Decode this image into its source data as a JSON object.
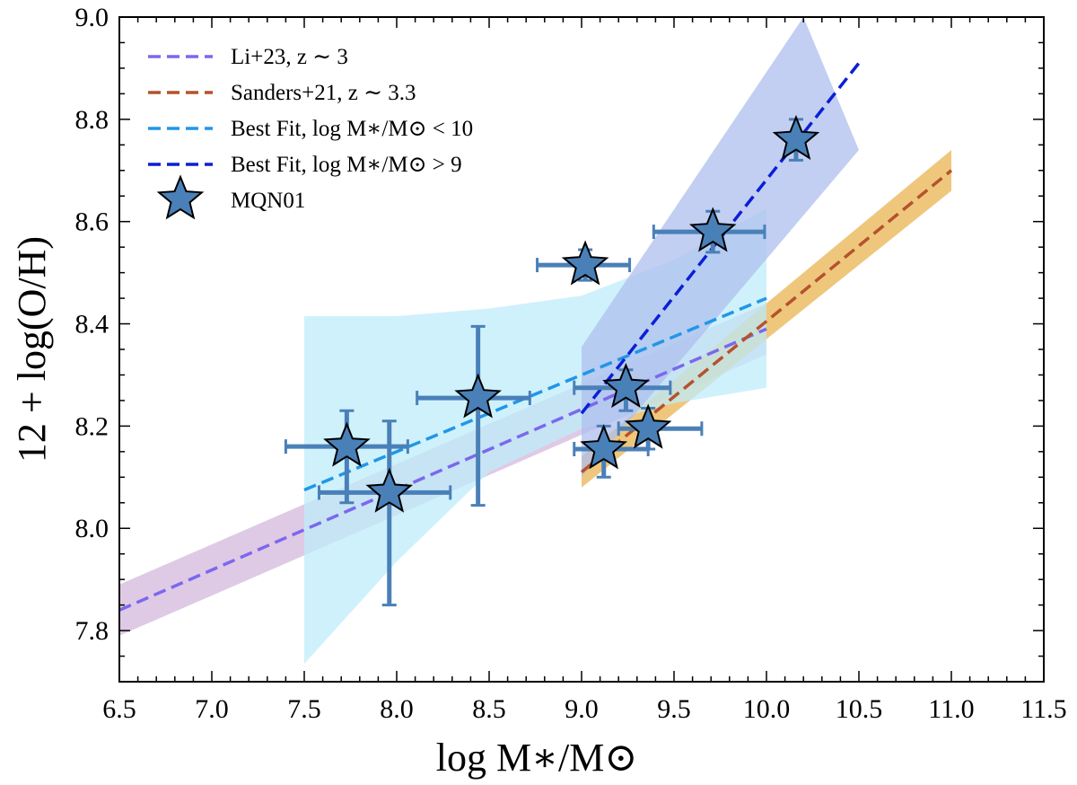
{
  "chart_data": {
    "type": "scatter",
    "xlabel": "log M∗/M⊙",
    "ylabel": "12 + log(O/H)",
    "xlim": [
      6.5,
      11.5
    ],
    "ylim": [
      7.7,
      9.0
    ],
    "xticks": [
      "6.5",
      "7.0",
      "7.5",
      "8.0",
      "8.5",
      "9.0",
      "9.5",
      "10.0",
      "10.5",
      "11.0",
      "11.5"
    ],
    "yticks": [
      "7.8",
      "8.0",
      "8.2",
      "8.4",
      "8.6",
      "8.8",
      "9.0"
    ],
    "grid": false,
    "legend_position": "top-left",
    "series": [
      {
        "name": "Li+23, z ∼ 3",
        "kind": "line",
        "color": "#7b68ee",
        "x": [
          6.5,
          10.0
        ],
        "y": [
          7.84,
          8.39
        ],
        "band_upper": [
          7.89,
          8.44
        ],
        "band_lower": [
          7.79,
          8.34
        ],
        "band_color": "#d4b8dc"
      },
      {
        "name": "Sanders+21, z ∼ 3.3",
        "kind": "line",
        "color": "#b5522c",
        "x": [
          9.0,
          11.0
        ],
        "y": [
          8.11,
          8.7
        ],
        "band_upper": [
          8.14,
          8.74
        ],
        "band_lower": [
          8.08,
          8.66
        ],
        "band_color": "#e8b452"
      },
      {
        "name": "Best Fit, log M∗/M⊙ < 10",
        "kind": "line",
        "color": "#2196e8",
        "x": [
          7.5,
          10.0
        ],
        "y": [
          8.075,
          8.45
        ],
        "band_x": [
          7.5,
          8.0,
          8.5,
          9.0,
          9.5,
          10.0
        ],
        "band_upper": [
          8.415,
          8.415,
          8.43,
          8.455,
          8.525,
          8.625
        ],
        "band_lower": [
          7.735,
          7.935,
          8.11,
          8.195,
          8.245,
          8.275
        ],
        "band_color": "#bfecf9"
      },
      {
        "name": "Best Fit, log M∗/M⊙ > 9",
        "kind": "line",
        "color": "#0a1fd6",
        "x": [
          9.0,
          10.5
        ],
        "y": [
          8.225,
          8.91
        ],
        "band_upper": [
          8.355,
          9.0
        ],
        "band_lower": [
          8.1,
          8.74
        ],
        "band_x_upper": [
          9.0,
          10.2
        ],
        "band_color": "#aebfee"
      },
      {
        "name": "MQN01",
        "kind": "scatter",
        "marker": "star",
        "color": "#4a80b8",
        "points": [
          {
            "x": 7.73,
            "y": 8.16,
            "xerr": [
              0.33,
              0.33
            ],
            "yerr": [
              0.11,
              0.07
            ]
          },
          {
            "x": 7.96,
            "y": 8.07,
            "xerr": [
              0.38,
              0.33
            ],
            "yerr": [
              0.22,
              0.14
            ]
          },
          {
            "x": 8.44,
            "y": 8.255,
            "xerr": [
              0.33,
              0.28
            ],
            "yerr": [
              0.21,
              0.14
            ]
          },
          {
            "x": 9.02,
            "y": 8.515,
            "xerr": [
              0.26,
              0.24
            ],
            "yerr": [
              0.03,
              0.03
            ]
          },
          {
            "x": 9.12,
            "y": 8.155,
            "xerr": [
              0.16,
              0.24
            ],
            "yerr": [
              0.055,
              0.045
            ]
          },
          {
            "x": 9.24,
            "y": 8.275,
            "xerr": [
              0.28,
              0.24
            ],
            "yerr": [
              0.045,
              0.035
            ]
          },
          {
            "x": 9.36,
            "y": 8.195,
            "xerr": [
              0.16,
              0.29
            ],
            "yerr": [
              0.04,
              0.04
            ]
          },
          {
            "x": 9.71,
            "y": 8.58,
            "xerr": [
              0.32,
              0.28
            ],
            "yerr": [
              0.04,
              0.04
            ]
          },
          {
            "x": 10.16,
            "y": 8.76,
            "xerr": [
              0.04,
              0.04
            ],
            "yerr": [
              0.04,
              0.04
            ]
          }
        ]
      }
    ]
  }
}
